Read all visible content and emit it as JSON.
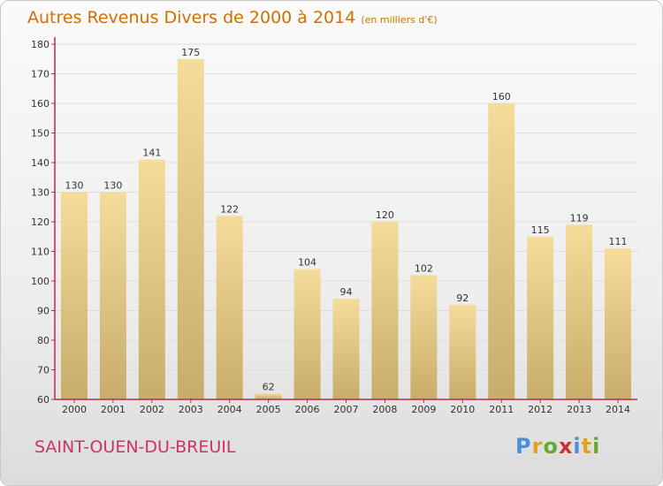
{
  "title": "Autres Revenus Divers de 2000 à 2014",
  "subtitle": "(en milliers d'€)",
  "location": "SAINT-OUEN-DU-BREUIL",
  "logo": {
    "letters": [
      "P",
      "r",
      "o",
      "x",
      "i",
      "t",
      "i"
    ],
    "colors": [
      "#4a90d9",
      "#e0a020",
      "#66aa33",
      "#d03030",
      "#4a90d9",
      "#e0a020",
      "#66aa33"
    ]
  },
  "colors": {
    "bar_top": "#f5dc9a",
    "bar_bottom": "#c8ad6a",
    "axis": "#c0284a",
    "title": "#d07000",
    "location": "#cc3366"
  },
  "chart_data": {
    "type": "bar",
    "categories": [
      "2000",
      "2001",
      "2002",
      "2003",
      "2004",
      "2005",
      "2006",
      "2007",
      "2008",
      "2009",
      "2010",
      "2011",
      "2012",
      "2013",
      "2014"
    ],
    "values": [
      130,
      130,
      141,
      175,
      122,
      62,
      104,
      94,
      120,
      102,
      92,
      160,
      115,
      119,
      111
    ],
    "title": "Autres Revenus Divers de 2000 à 2014",
    "xlabel": "",
    "ylabel": "",
    "ylim": [
      60,
      180
    ],
    "yticks": [
      60,
      70,
      80,
      90,
      100,
      110,
      120,
      130,
      140,
      150,
      160,
      170,
      180
    ],
    "grid": true,
    "legend": "none"
  }
}
